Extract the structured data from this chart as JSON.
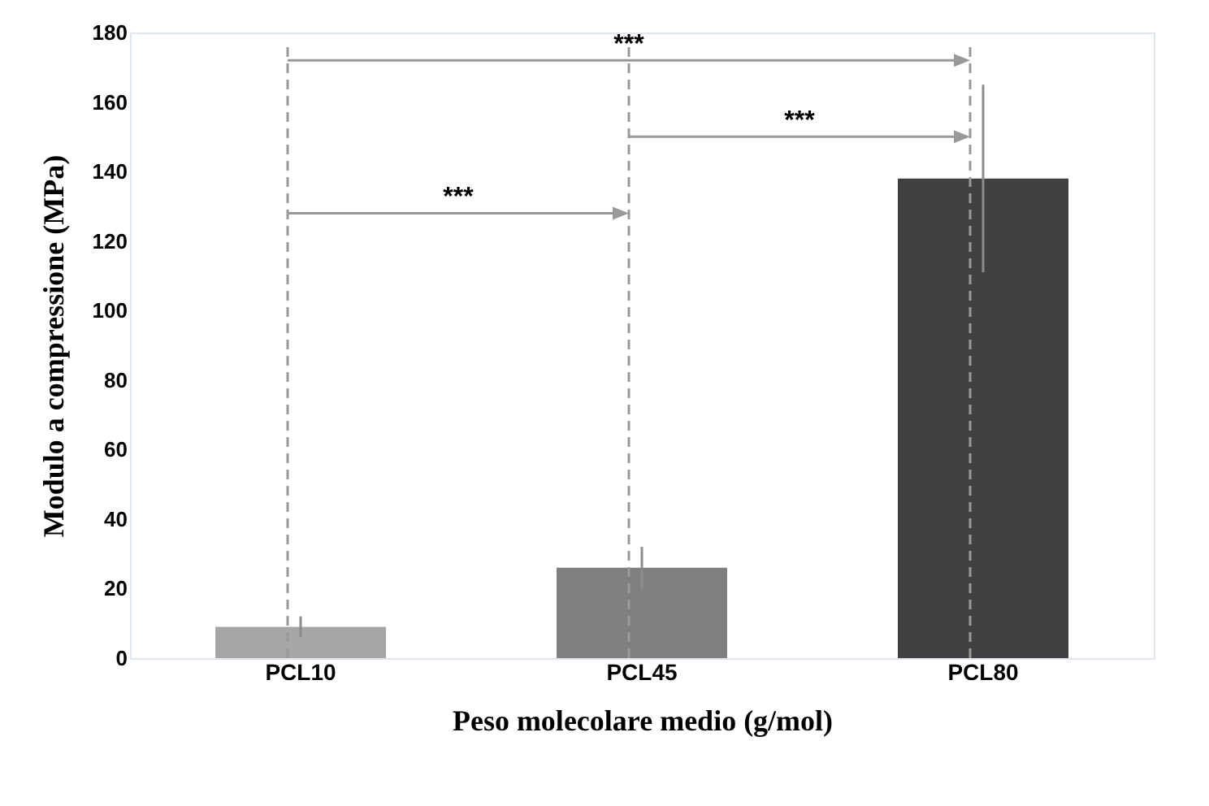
{
  "chart_data": {
    "type": "bar",
    "xlabel": "Peso molecolare medio (g/mol)",
    "ylabel": "Modulo a compressione (MPa)",
    "categories": [
      "PCL10",
      "PCL45",
      "PCL80"
    ],
    "values": [
      9,
      26,
      138
    ],
    "errors": [
      3,
      6,
      27
    ],
    "colors": [
      "#a6a6a6",
      "#7f7f7f",
      "#404040"
    ],
    "ylim": [
      0,
      180
    ],
    "yticks": [
      0,
      20,
      40,
      60,
      80,
      100,
      120,
      140,
      160,
      180
    ],
    "grid": false,
    "ref_lines": [
      {
        "axis": "x",
        "value": "PCL10",
        "color": "#999999",
        "line_style": "dashed"
      },
      {
        "axis": "x",
        "value": "PCL45",
        "color": "#999999",
        "line_style": "dashed"
      },
      {
        "axis": "x",
        "value": "PCL80",
        "color": "#999999",
        "line_style": "dashed"
      }
    ],
    "annotations": [
      "***",
      "***",
      "***"
    ]
  }
}
